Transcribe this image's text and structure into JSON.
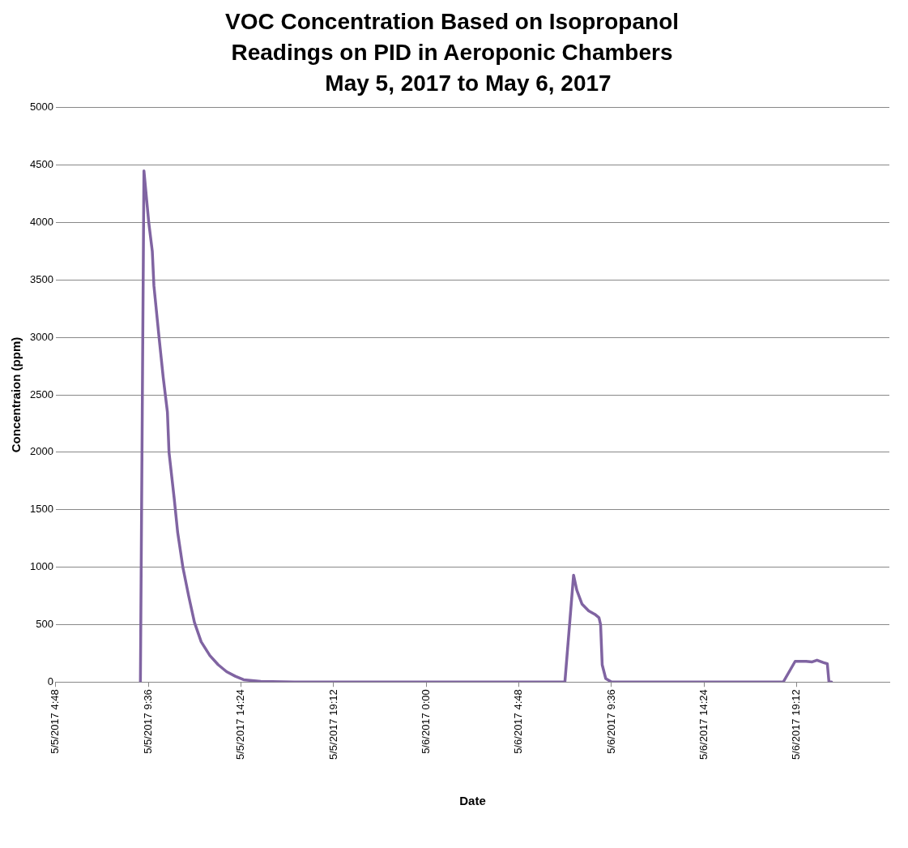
{
  "chart_data": {
    "type": "line",
    "title": "VOC Concentration Based on Isopropanol Readings on PID in Aeroponic Chambers",
    "subtitle": "May 5, 2017 to May 6, 2017",
    "xlabel": "Date",
    "ylabel": "Concentraion (ppm)",
    "x": [
      "2017-05-05T09:11",
      "2017-05-05T09:22",
      "2017-05-05T09:37",
      "2017-05-05T09:48",
      "2017-05-05T09:53",
      "2017-05-05T10:09",
      "2017-05-05T10:22",
      "2017-05-05T10:35",
      "2017-05-05T10:40",
      "2017-05-05T10:56",
      "2017-05-05T11:07",
      "2017-05-05T11:23",
      "2017-05-05T11:41",
      "2017-05-05T11:59",
      "2017-05-05T12:20",
      "2017-05-05T12:47",
      "2017-05-05T13:13",
      "2017-05-05T13:39",
      "2017-05-05T14:06",
      "2017-05-05T14:32",
      "2017-05-05T15:25",
      "2017-05-05T17:10",
      "2017-05-06T07:11",
      "2017-05-06T07:38",
      "2017-05-06T07:48",
      "2017-05-06T08:04",
      "2017-05-06T08:25",
      "2017-05-06T08:44",
      "2017-05-06T08:57",
      "2017-05-06T09:02",
      "2017-05-06T09:07",
      "2017-05-06T09:18",
      "2017-05-06T09:36",
      "2017-05-06T18:30",
      "2017-05-06T19:07",
      "2017-05-06T19:41",
      "2017-05-06T20:00",
      "2017-05-06T20:15",
      "2017-05-06T20:34",
      "2017-05-06T20:47",
      "2017-05-06T20:52",
      "2017-05-06T21:00"
    ],
    "series": [
      {
        "color": "#8064a2",
        "values": [
          0,
          4450,
          4000,
          3750,
          3450,
          3000,
          2650,
          2350,
          2000,
          1600,
          1300,
          1000,
          750,
          520,
          350,
          230,
          150,
          90,
          50,
          20,
          5,
          0,
          0,
          930,
          800,
          680,
          620,
          590,
          560,
          500,
          150,
          30,
          0,
          0,
          180,
          180,
          175,
          190,
          170,
          160,
          5,
          0
        ]
      }
    ],
    "xlim": [
      "2017-05-05T04:48",
      "2017-05-07T00:00"
    ],
    "xticks": [
      {
        "value": "2017-05-05T04:48",
        "label": "5/5/2017 4:48"
      },
      {
        "value": "2017-05-05T09:36",
        "label": "5/5/2017 9:36"
      },
      {
        "value": "2017-05-05T14:24",
        "label": "5/5/2017 14:24"
      },
      {
        "value": "2017-05-05T19:12",
        "label": "5/5/2017 19:12"
      },
      {
        "value": "2017-05-06T00:00",
        "label": "5/6/2017 0:00"
      },
      {
        "value": "2017-05-06T04:48",
        "label": "5/6/2017 4:48"
      },
      {
        "value": "2017-05-06T09:36",
        "label": "5/6/2017 9:36"
      },
      {
        "value": "2017-05-06T14:24",
        "label": "5/6/2017 14:24"
      },
      {
        "value": "2017-05-06T19:12",
        "label": "5/6/2017 19:12"
      }
    ],
    "ylim": [
      0,
      5000
    ],
    "yticks": [
      0,
      500,
      1000,
      1500,
      2000,
      2500,
      3000,
      3500,
      4000,
      4500,
      5000
    ],
    "grid": "y",
    "legend": false,
    "marker": "none",
    "line_style": "solid"
  }
}
